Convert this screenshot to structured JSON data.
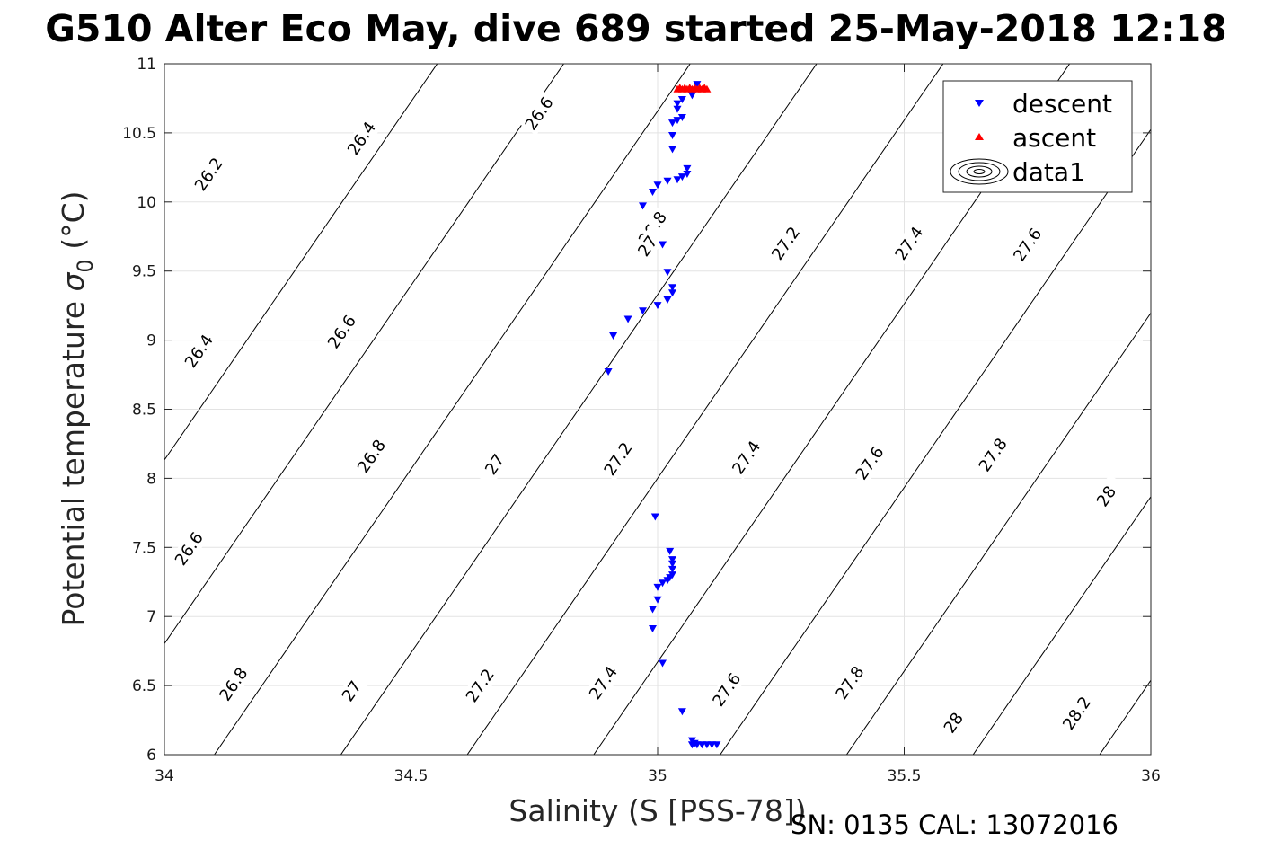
{
  "chart_data": {
    "type": "scatter",
    "title": "G510 Alter Eco May, dive 689 started 25-May-2018 12:18",
    "xlabel": "Salinity (S [PSS-78])",
    "ylabel_main": "Potential temperature ",
    "ylabel_symbol": "σ",
    "ylabel_sub": "0",
    "ylabel_unit": " (°C)",
    "xlim": [
      34,
      36
    ],
    "ylim": [
      6,
      11
    ],
    "x_ticks": [
      "34",
      "34.5",
      "35",
      "35.5",
      "36"
    ],
    "y_ticks": [
      "6",
      "6.5",
      "7",
      "7.5",
      "8",
      "8.5",
      "9",
      "9.5",
      "10",
      "10.5",
      "11"
    ],
    "grid": true,
    "legend_position": "top-right",
    "legend": [
      "descent",
      "ascent",
      "data1"
    ],
    "series": [
      {
        "name": "descent",
        "color": "#0000ff",
        "marker": "triangle-down",
        "points": [
          [
            35.07,
            6.07
          ],
          [
            35.08,
            6.07
          ],
          [
            35.09,
            6.07
          ],
          [
            35.1,
            6.07
          ],
          [
            35.11,
            6.07
          ],
          [
            35.12,
            6.07
          ],
          [
            35.075,
            6.08
          ],
          [
            35.07,
            6.1
          ],
          [
            35.05,
            6.31
          ],
          [
            35.01,
            6.66
          ],
          [
            34.99,
            6.91
          ],
          [
            34.99,
            7.05
          ],
          [
            35.0,
            7.12
          ],
          [
            35.0,
            7.21
          ],
          [
            35.01,
            7.24
          ],
          [
            35.02,
            7.26
          ],
          [
            35.025,
            7.28
          ],
          [
            35.03,
            7.3
          ],
          [
            35.03,
            7.34
          ],
          [
            35.03,
            7.38
          ],
          [
            35.03,
            7.41
          ],
          [
            35.025,
            7.47
          ],
          [
            34.995,
            7.72
          ],
          [
            34.9,
            8.77
          ],
          [
            34.91,
            9.03
          ],
          [
            34.94,
            9.15
          ],
          [
            34.97,
            9.21
          ],
          [
            35.0,
            9.25
          ],
          [
            35.02,
            9.29
          ],
          [
            35.03,
            9.34
          ],
          [
            35.03,
            9.38
          ],
          [
            35.02,
            9.49
          ],
          [
            35.01,
            9.69
          ],
          [
            34.97,
            9.97
          ],
          [
            34.99,
            10.07
          ],
          [
            35.0,
            10.12
          ],
          [
            35.02,
            10.15
          ],
          [
            35.04,
            10.16
          ],
          [
            35.05,
            10.18
          ],
          [
            35.06,
            10.2
          ],
          [
            35.06,
            10.24
          ],
          [
            35.03,
            10.38
          ],
          [
            35.03,
            10.48
          ],
          [
            35.03,
            10.57
          ],
          [
            35.04,
            10.59
          ],
          [
            35.05,
            10.61
          ],
          [
            35.04,
            10.67
          ],
          [
            35.04,
            10.71
          ],
          [
            35.05,
            10.74
          ],
          [
            35.07,
            10.77
          ],
          [
            35.08,
            10.85
          ]
        ]
      },
      {
        "name": "ascent",
        "color": "#ff0000",
        "marker": "triangle-up",
        "points": [
          [
            35.04,
            10.82
          ],
          [
            35.05,
            10.82
          ],
          [
            35.06,
            10.82
          ],
          [
            35.07,
            10.82
          ],
          [
            35.08,
            10.82
          ],
          [
            35.09,
            10.82
          ],
          [
            35.1,
            10.82
          ],
          [
            35.045,
            10.83
          ],
          [
            35.055,
            10.83
          ],
          [
            35.065,
            10.83
          ],
          [
            35.075,
            10.83
          ],
          [
            35.085,
            10.83
          ],
          [
            35.095,
            10.83
          ]
        ]
      },
      {
        "name": "data1",
        "type": "contour",
        "color": "#000000",
        "levels": [
          26.2,
          26.4,
          26.6,
          26.8,
          27,
          27.2,
          27.4,
          27.6,
          27.8,
          28,
          28.2
        ],
        "contour_labels": [
          {
            "text": "26.2",
            "x": 34.09,
            "y": 10.2
          },
          {
            "text": "26.4",
            "x": 34.4,
            "y": 10.46
          },
          {
            "text": "26.6",
            "x": 34.76,
            "y": 10.64
          },
          {
            "text": "26.8",
            "x": 34.99,
            "y": 9.81
          },
          {
            "text": "27",
            "x": 34.98,
            "y": 9.68
          },
          {
            "text": "27.2",
            "x": 35.26,
            "y": 9.7
          },
          {
            "text": "27.4",
            "x": 35.51,
            "y": 9.7
          },
          {
            "text": "27.6",
            "x": 35.75,
            "y": 9.69
          },
          {
            "text": "26.4",
            "x": 34.07,
            "y": 8.92
          },
          {
            "text": "26.6",
            "x": 34.36,
            "y": 9.06
          },
          {
            "text": "26.8",
            "x": 34.42,
            "y": 8.16
          },
          {
            "text": "27",
            "x": 34.67,
            "y": 8.1
          },
          {
            "text": "27.2",
            "x": 34.92,
            "y": 8.14
          },
          {
            "text": "27.4",
            "x": 35.18,
            "y": 8.15
          },
          {
            "text": "27.6",
            "x": 35.43,
            "y": 8.11
          },
          {
            "text": "27.8",
            "x": 35.68,
            "y": 8.17
          },
          {
            "text": "28",
            "x": 35.91,
            "y": 7.87
          },
          {
            "text": "26.6",
            "x": 34.05,
            "y": 7.49
          },
          {
            "text": "26.8",
            "x": 34.14,
            "y": 6.51
          },
          {
            "text": "27",
            "x": 34.38,
            "y": 6.46
          },
          {
            "text": "27.2",
            "x": 34.64,
            "y": 6.5
          },
          {
            "text": "27.4",
            "x": 34.89,
            "y": 6.52
          },
          {
            "text": "27.6",
            "x": 35.14,
            "y": 6.47
          },
          {
            "text": "27.8",
            "x": 35.39,
            "y": 6.52
          },
          {
            "text": "28",
            "x": 35.6,
            "y": 6.23
          },
          {
            "text": "28.2",
            "x": 35.85,
            "y": 6.3
          }
        ]
      }
    ]
  },
  "footer": "SN: 0135  CAL: 13072016"
}
